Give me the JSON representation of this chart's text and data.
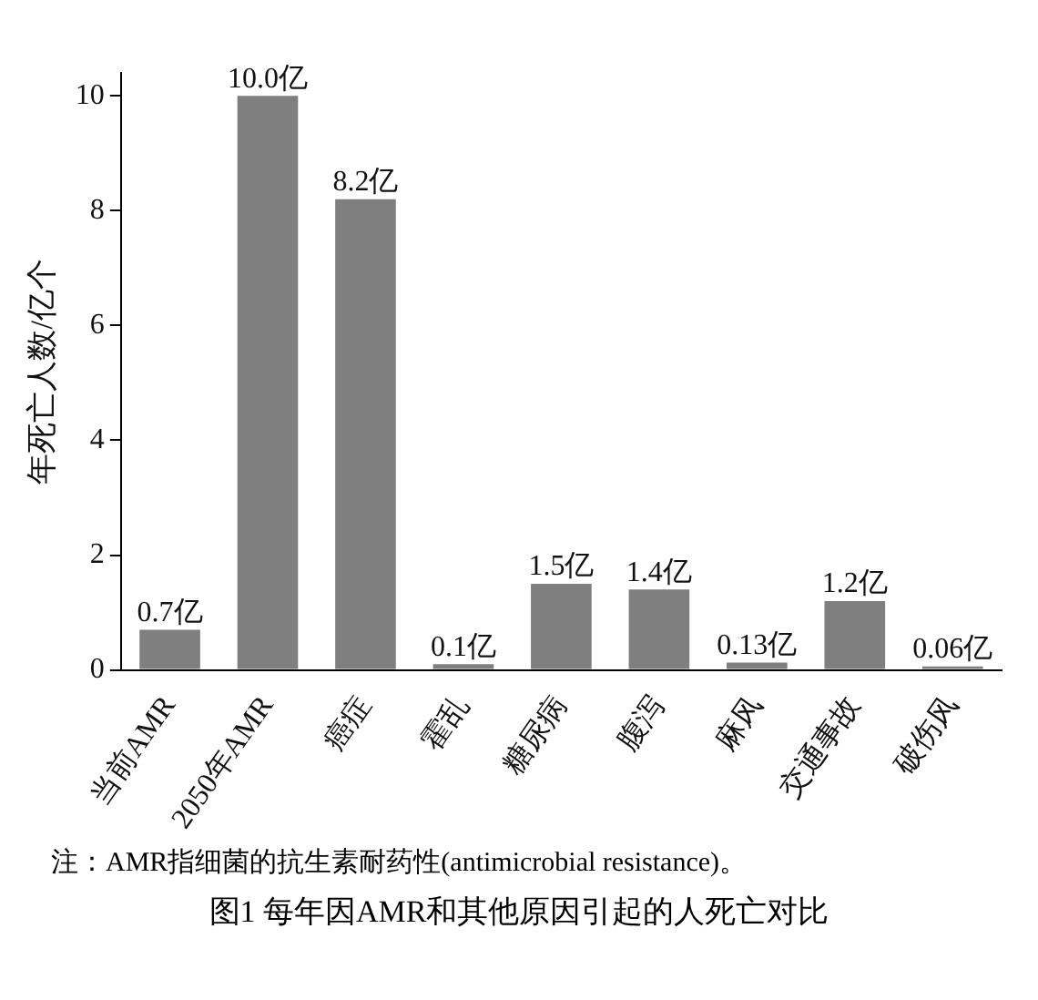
{
  "chart_data": {
    "type": "bar",
    "title": "图1 每年因AMR和其他原因引起的人死亡对比",
    "ylabel": "年死亡人数/亿个",
    "categories": [
      "当前AMR",
      "2050年AMR",
      "癌症",
      "霍乱",
      "糖尿病",
      "腹泻",
      "麻风",
      "交通事故",
      "破伤风"
    ],
    "values": [
      0.7,
      10.0,
      8.2,
      0.1,
      1.5,
      1.4,
      0.13,
      1.2,
      0.06
    ],
    "value_labels": [
      "0.7亿",
      "10.0亿",
      "8.2亿",
      "0.1亿",
      "1.5亿",
      "1.4亿",
      "0.13亿",
      "1.2亿",
      "0.06亿"
    ],
    "color": "#7f7f7f",
    "ylim": [
      0,
      10.4
    ],
    "yticks": [
      0,
      2,
      4,
      6,
      8,
      10
    ],
    "grid": false,
    "legend": false,
    "annotations": [
      "注：AMR指细菌的抗生素耐药性(antimicrobial resistance)。"
    ]
  }
}
